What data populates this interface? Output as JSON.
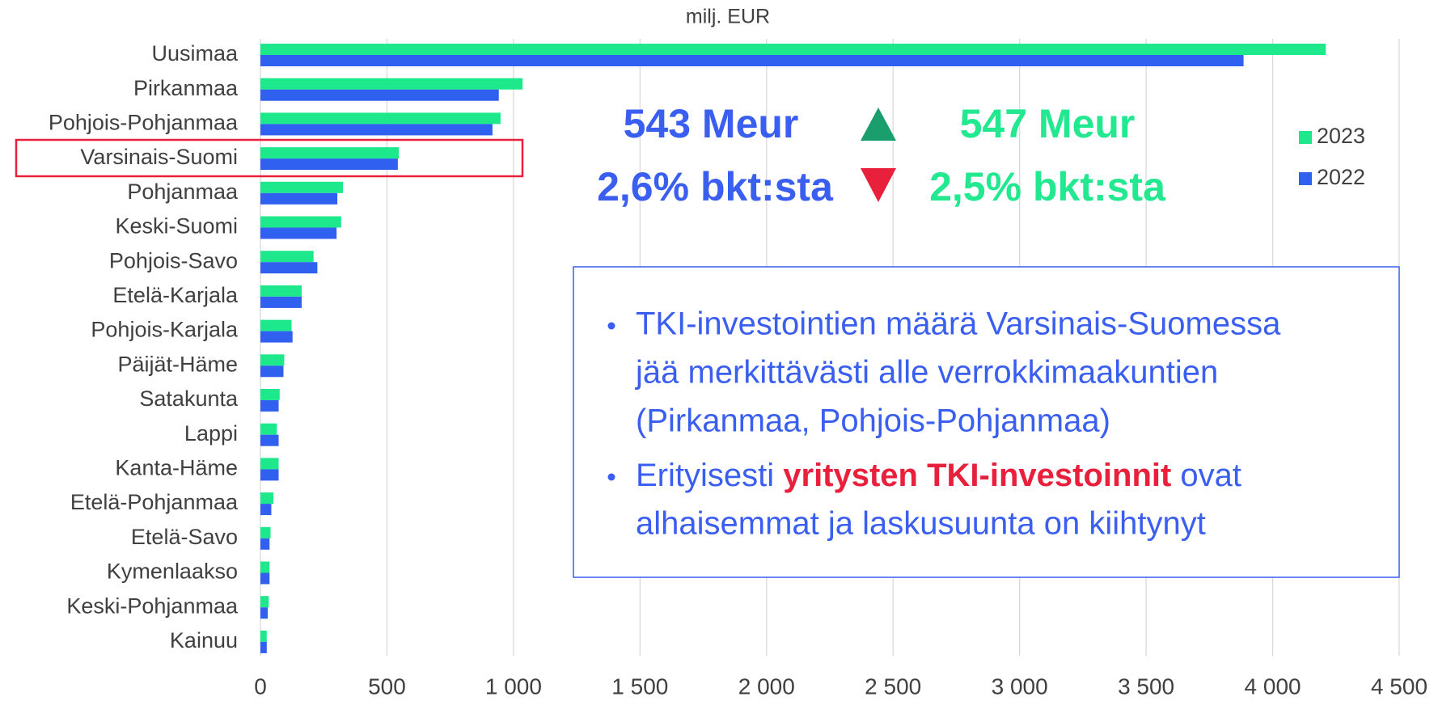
{
  "chart_data": {
    "type": "bar",
    "orientation": "horizontal",
    "title": "milj. EUR",
    "categories": [
      "Uusimaa",
      "Pirkanmaa",
      "Pohjois-Pohjanmaa",
      "Varsinais-Suomi",
      "Pohjanmaa",
      "Keski-Suomi",
      "Pohjois-Savo",
      "Etelä-Karjala",
      "Pohjois-Karjala",
      "Päijät-Häme",
      "Satakunta",
      "Lappi",
      "Kanta-Häme",
      "Etelä-Pohjanmaa",
      "Etelä-Savo",
      "Kymenlaakso",
      "Keski-Pohjanmaa",
      "Kainuu"
    ],
    "series": [
      {
        "name": "2023",
        "color": "#1ee88c",
        "values": [
          4210,
          1036,
          949,
          547,
          326,
          319,
          210,
          163,
          123,
          94,
          76,
          65,
          72,
          51,
          40,
          36,
          33,
          25
        ]
      },
      {
        "name": "2022",
        "color": "#3060f0",
        "values": [
          3885,
          942,
          917,
          543,
          304,
          301,
          225,
          163,
          127,
          91,
          72,
          72,
          72,
          43,
          36,
          36,
          29,
          25
        ]
      }
    ],
    "xlim": [
      0,
      4500
    ],
    "xticks": [
      0,
      500,
      {
        "value": 1000,
        "label": "1 000"
      },
      {
        "value": 1500,
        "label": "1 500"
      },
      {
        "value": 2000,
        "label": "2 000"
      },
      {
        "value": 2500,
        "label": "2 500"
      },
      {
        "value": 3000,
        "label": "3 000"
      },
      {
        "value": 3500,
        "label": "3 500"
      },
      {
        "value": 4000,
        "label": "4 000"
      },
      {
        "value": 4500,
        "label": "4 500"
      }
    ],
    "grid": true,
    "legend": "right",
    "annotations": {
      "meur_2022": "543 Meur",
      "meur_2023": "547 Meur",
      "gdp_2022": "2,6% bkt:sta",
      "gdp_2023": "2,5% bkt:sta"
    },
    "text_box": {
      "bullets": [
        {
          "lines": [
            "TKI-investointien määrä Varsinais-Suomessa",
            "jää merkittävästi alle verrokkimaakuntien",
            "(Pirkanmaa, Pohjois-Pohjanmaa)"
          ]
        },
        {
          "lines": [
            [
              {
                "text": "Erityisesti "
              },
              {
                "text": "yritysten TKI-investoinnit",
                "highlight": true
              },
              {
                "text": " ovat"
              }
            ],
            "alhaisemmat ja laskusuunta on kiihtynyt"
          ]
        }
      ]
    }
  }
}
